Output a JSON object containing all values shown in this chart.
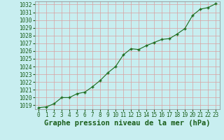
{
  "x": [
    0,
    1,
    2,
    3,
    4,
    5,
    6,
    7,
    8,
    9,
    10,
    11,
    12,
    13,
    14,
    15,
    16,
    17,
    18,
    19,
    20,
    21,
    22,
    23
  ],
  "y": [
    1018.7,
    1018.8,
    1019.2,
    1020.0,
    1020.0,
    1020.5,
    1020.7,
    1021.4,
    1022.2,
    1023.2,
    1024.0,
    1025.5,
    1026.3,
    1026.2,
    1026.7,
    1027.1,
    1027.5,
    1027.6,
    1028.2,
    1028.9,
    1030.6,
    1031.4,
    1031.6,
    1032.1
  ],
  "ylim_min": 1018.5,
  "ylim_max": 1032.4,
  "yticks": [
    1019,
    1020,
    1021,
    1022,
    1023,
    1024,
    1025,
    1026,
    1027,
    1028,
    1029,
    1030,
    1031,
    1032
  ],
  "xticks": [
    0,
    1,
    2,
    3,
    4,
    5,
    6,
    7,
    8,
    9,
    10,
    11,
    12,
    13,
    14,
    15,
    16,
    17,
    18,
    19,
    20,
    21,
    22,
    23
  ],
  "xlabel": "Graphe pression niveau de la mer (hPa)",
  "line_color": "#1a6b1a",
  "marker_color": "#1a6b1a",
  "bg_color": "#c8eef0",
  "grid_color": "#d9a0a0",
  "tick_fontsize": 5.5,
  "xlabel_fontsize": 7.5
}
